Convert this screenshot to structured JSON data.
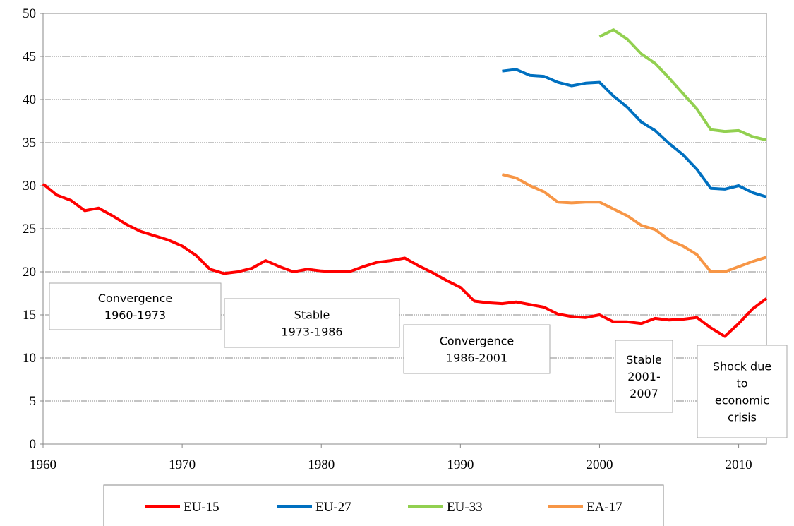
{
  "chart_data": {
    "type": "line",
    "x": [
      1960,
      1961,
      1962,
      1963,
      1964,
      1965,
      1966,
      1967,
      1968,
      1969,
      1970,
      1971,
      1972,
      1973,
      1974,
      1975,
      1976,
      1977,
      1978,
      1979,
      1980,
      1981,
      1982,
      1983,
      1984,
      1985,
      1986,
      1987,
      1988,
      1989,
      1990,
      1991,
      1992,
      1993,
      1994,
      1995,
      1996,
      1997,
      1998,
      1999,
      2000,
      2001,
      2002,
      2003,
      2004,
      2005,
      2006,
      2007,
      2008,
      2009,
      2010,
      2011,
      2012
    ],
    "series": [
      {
        "name": "EU-15",
        "color": "#ff0000",
        "values": [
          30.2,
          28.9,
          28.3,
          27.1,
          27.4,
          26.5,
          25.5,
          24.7,
          24.2,
          23.7,
          23.0,
          21.9,
          20.3,
          19.8,
          20.0,
          20.4,
          21.3,
          20.6,
          20.0,
          20.3,
          20.1,
          20.0,
          20.0,
          20.6,
          21.1,
          21.3,
          21.6,
          20.7,
          19.9,
          19.0,
          18.2,
          16.6,
          16.4,
          16.3,
          16.5,
          16.2,
          15.9,
          15.1,
          14.8,
          14.7,
          15.0,
          14.2,
          14.2,
          14.0,
          14.6,
          14.4,
          14.5,
          14.7,
          13.5,
          12.5,
          14.0,
          15.7,
          16.9
        ]
      },
      {
        "name": "EU-27",
        "color": "#0070c0",
        "values": [
          null,
          null,
          null,
          null,
          null,
          null,
          null,
          null,
          null,
          null,
          null,
          null,
          null,
          null,
          null,
          null,
          null,
          null,
          null,
          null,
          null,
          null,
          null,
          null,
          null,
          null,
          null,
          null,
          null,
          null,
          null,
          null,
          null,
          43.3,
          43.5,
          42.8,
          42.7,
          42.0,
          41.6,
          41.9,
          42.0,
          40.4,
          39.1,
          37.4,
          36.4,
          34.9,
          33.6,
          31.9,
          29.7,
          29.6,
          30.0,
          29.2,
          28.7
        ]
      },
      {
        "name": "EU-33",
        "color": "#92d050",
        "values": [
          null,
          null,
          null,
          null,
          null,
          null,
          null,
          null,
          null,
          null,
          null,
          null,
          null,
          null,
          null,
          null,
          null,
          null,
          null,
          null,
          null,
          null,
          null,
          null,
          null,
          null,
          null,
          null,
          null,
          null,
          null,
          null,
          null,
          null,
          null,
          null,
          null,
          null,
          null,
          null,
          47.3,
          48.1,
          47.0,
          45.3,
          44.2,
          42.5,
          40.7,
          38.9,
          36.5,
          36.3,
          36.4,
          35.7,
          35.3
        ]
      },
      {
        "name": "EA-17",
        "color": "#f79646",
        "values": [
          null,
          null,
          null,
          null,
          null,
          null,
          null,
          null,
          null,
          null,
          null,
          null,
          null,
          null,
          null,
          null,
          null,
          null,
          null,
          null,
          null,
          null,
          null,
          null,
          null,
          null,
          null,
          null,
          null,
          null,
          null,
          null,
          null,
          31.3,
          30.9,
          30.0,
          29.3,
          28.1,
          28.0,
          28.1,
          28.1,
          27.3,
          26.5,
          25.4,
          24.9,
          23.7,
          23.0,
          22.0,
          20.0,
          20.0,
          20.6,
          21.2,
          21.7
        ]
      }
    ],
    "xlim": [
      1960,
      2012
    ],
    "xticks": [
      1960,
      1970,
      1980,
      1990,
      2000,
      2010
    ],
    "ylim": [
      0,
      50
    ],
    "yticks": [
      0,
      5,
      10,
      15,
      20,
      25,
      30,
      35,
      40,
      45,
      50
    ],
    "grid": true,
    "legend": "bottom",
    "annotations": [
      {
        "lines": [
          "Convergence",
          "1960-1973"
        ]
      },
      {
        "lines": [
          "Stable",
          "1973-1986"
        ]
      },
      {
        "lines": [
          "Convergence",
          "1986-2001"
        ]
      },
      {
        "lines": [
          "Stable",
          "2001-",
          "2007"
        ]
      },
      {
        "lines": [
          "Shock due",
          "to",
          "economic",
          "crisis"
        ]
      }
    ]
  }
}
